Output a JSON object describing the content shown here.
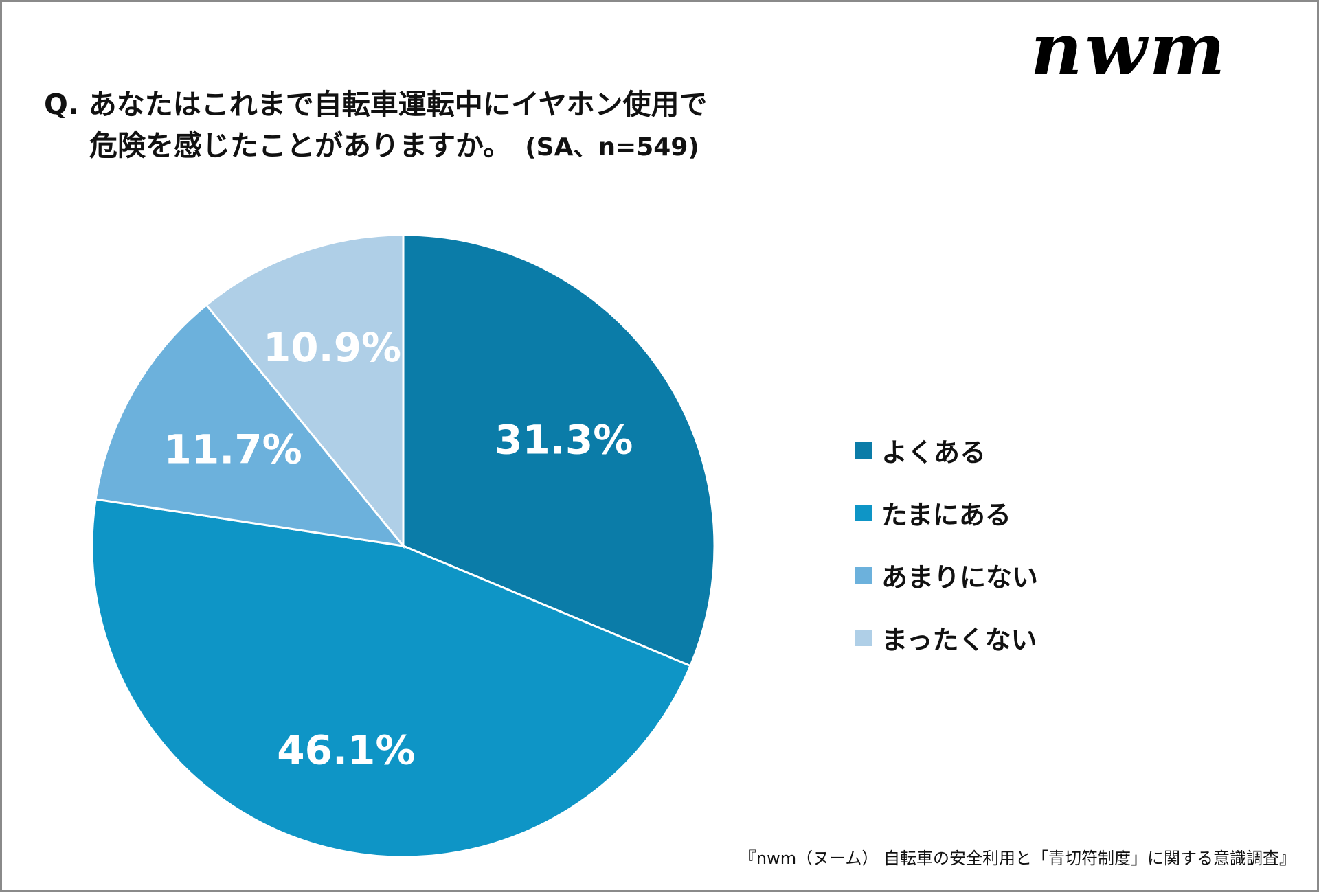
{
  "logo": "nwm",
  "title": {
    "line1": "Q. あなたはこれまで自転車運転中にイヤホン使用で",
    "line2": "危険を感じたことがありますか。",
    "note": "(SA、n=549)"
  },
  "chart_data": {
    "type": "pie",
    "start": "12 o'clock, clockwise",
    "categories": [
      "よくある",
      "たまにある",
      "あまりにない",
      "まったくない"
    ],
    "values": [
      31.3,
      46.1,
      11.7,
      10.9
    ],
    "data_labels": [
      "31.3%",
      "46.1%",
      "11.7%",
      "10.9%"
    ],
    "colors": [
      "#0b7ca8",
      "#0e95c6",
      "#6cb1dc",
      "#afcfe7"
    ],
    "legend_position": "right"
  },
  "source": "『nwm（ヌーム） 自転車の安全利用と「青切符制度」に関する意識調査』"
}
